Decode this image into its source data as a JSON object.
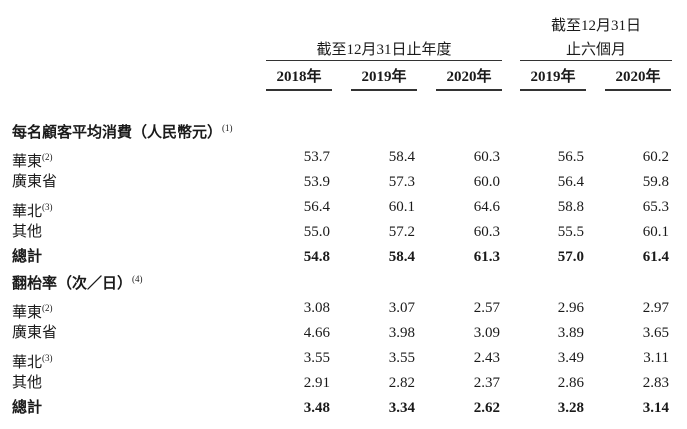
{
  "header": {
    "fy_group": "截至12月31日止年度",
    "half_group_line1": "截至12月31日",
    "half_group_line2": "止六個月",
    "years": [
      "2018年",
      "2019年",
      "2020年",
      "2019年",
      "2020年"
    ]
  },
  "sections": [
    {
      "title": "每名顧客平均消費（人民幣元）",
      "note": "(1)",
      "rows": [
        {
          "label": "華東",
          "note": "(2)",
          "values": [
            "53.7",
            "58.4",
            "60.3",
            "56.5",
            "60.2"
          ],
          "bold": false
        },
        {
          "label": "廣東省",
          "note": "",
          "values": [
            "53.9",
            "57.3",
            "60.0",
            "56.4",
            "59.8"
          ],
          "bold": false
        },
        {
          "label": "華北",
          "note": "(3)",
          "values": [
            "56.4",
            "60.1",
            "64.6",
            "58.8",
            "65.3"
          ],
          "bold": false
        },
        {
          "label": "其他",
          "note": "",
          "values": [
            "55.0",
            "57.2",
            "60.3",
            "55.5",
            "60.1"
          ],
          "bold": false
        },
        {
          "label": "總計",
          "note": "",
          "values": [
            "54.8",
            "58.4",
            "61.3",
            "57.0",
            "61.4"
          ],
          "bold": true
        }
      ]
    },
    {
      "title": "翻枱率（次／日）",
      "note": "(4)",
      "rows": [
        {
          "label": "華東",
          "note": "(2)",
          "values": [
            "3.08",
            "3.07",
            "2.57",
            "2.96",
            "2.97"
          ],
          "bold": false
        },
        {
          "label": "廣東省",
          "note": "",
          "values": [
            "4.66",
            "3.98",
            "3.09",
            "3.89",
            "3.65"
          ],
          "bold": false
        },
        {
          "label": "華北",
          "note": "(3)",
          "values": [
            "3.55",
            "3.55",
            "2.43",
            "3.49",
            "3.11"
          ],
          "bold": false
        },
        {
          "label": "其他",
          "note": "",
          "values": [
            "2.91",
            "2.82",
            "2.37",
            "2.86",
            "2.83"
          ],
          "bold": false
        },
        {
          "label": "總計",
          "note": "",
          "values": [
            "3.48",
            "3.34",
            "2.62",
            "3.28",
            "3.14"
          ],
          "bold": true
        }
      ]
    }
  ]
}
